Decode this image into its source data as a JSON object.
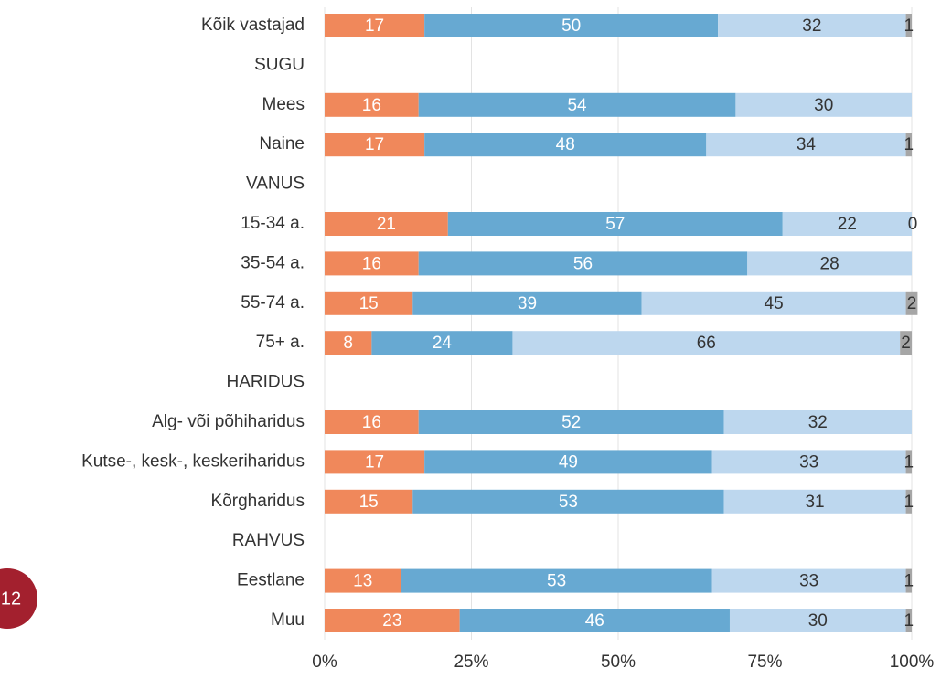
{
  "page_number": "12",
  "chart_data": {
    "type": "stacked-bar-horizontal",
    "categories": [
      "Kõik vastajad",
      "SUGU",
      "Mees",
      "Naine",
      "VANUS",
      "15-34 a.",
      "35-54 a.",
      "55-74 a.",
      "75+ a.",
      "HARIDUS",
      "Alg- või põhiharidus",
      "Kutse-, kesk-, keskeriharidus",
      "Kõrgharidus",
      "RAHVUS",
      "Eestlane",
      "Muu"
    ],
    "series": [
      {
        "color": "#f0885b",
        "label_color": "#ffffff",
        "values": [
          17,
          null,
          16,
          17,
          null,
          21,
          16,
          15,
          8,
          null,
          16,
          17,
          15,
          null,
          13,
          23
        ]
      },
      {
        "color": "#67a9d2",
        "label_color": "#ffffff",
        "values": [
          50,
          null,
          54,
          48,
          null,
          57,
          56,
          39,
          24,
          null,
          52,
          49,
          53,
          null,
          53,
          46
        ]
      },
      {
        "color": "#bdd7ee",
        "label_color": "#333333",
        "values": [
          32,
          null,
          30,
          34,
          null,
          22,
          28,
          45,
          66,
          null,
          32,
          33,
          31,
          null,
          33,
          30
        ]
      },
      {
        "color": "#a6a6a6",
        "label_color": "#333333",
        "values": [
          1,
          null,
          null,
          1,
          null,
          0,
          null,
          2,
          2,
          null,
          null,
          1,
          1,
          null,
          1,
          1
        ]
      }
    ],
    "xlim": [
      0,
      100
    ],
    "xticks": [
      {
        "value": 0,
        "label": "0%"
      },
      {
        "value": 25,
        "label": "25%"
      },
      {
        "value": 50,
        "label": "50%"
      },
      {
        "value": 75,
        "label": "75%"
      },
      {
        "value": 100,
        "label": "100%"
      }
    ],
    "grid": true
  }
}
